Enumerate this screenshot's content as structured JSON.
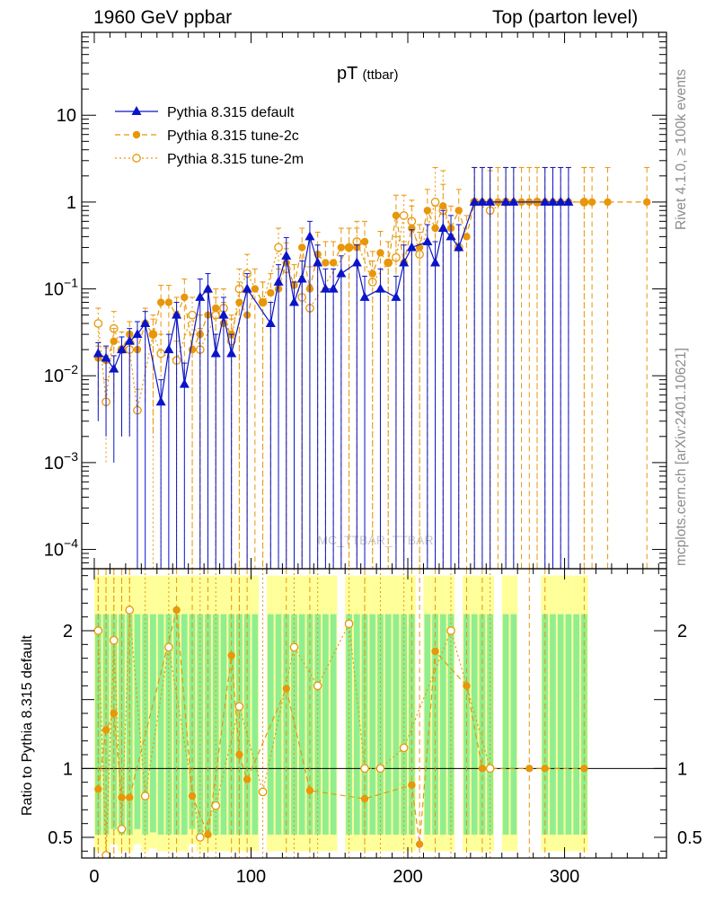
{
  "header": {
    "left": "1960 GeV ppbar",
    "right": "Top (parton level)"
  },
  "side_labels": {
    "rivet": "Rivet 4.1.0, ≥ 100k events",
    "mcplots": "mcplots.cern.ch [arXiv:2401.10621]"
  },
  "watermark": "MC_TTBAR_TTBAR",
  "colors": {
    "default": "#0a14c8",
    "tune2c": "#e8960a",
    "tune2m": "#e8960a",
    "band_green": "#90ee90",
    "band_yellow": "#ffff99"
  },
  "chart_data": {
    "type": "line",
    "title": "pT",
    "title_sub": "(ttbar)",
    "xlabel": "",
    "xlim": [
      -8,
      365
    ],
    "x_ticks": [
      "0",
      "100",
      "200",
      "300"
    ],
    "main": {
      "yscale": "log",
      "ylim": [
        6e-05,
        90
      ],
      "y_ticks": [
        {
          "value": 0.0001,
          "base": "10",
          "exp": "−4"
        },
        {
          "value": 0.001,
          "base": "10",
          "exp": "−3"
        },
        {
          "value": 0.01,
          "base": "10",
          "exp": "−2"
        },
        {
          "value": 0.1,
          "base": "10",
          "exp": "−1"
        },
        {
          "value": 1,
          "base": "1",
          "exp": ""
        },
        {
          "value": 10,
          "base": "10",
          "exp": ""
        }
      ],
      "legend": [
        "Pythia 8.315 default",
        "Pythia 8.315 tune-2c",
        "Pythia 8.315 tune-2m"
      ],
      "series": [
        {
          "name": "Pythia 8.315 default",
          "x": [
            2.5,
            7.5,
            12.5,
            17.5,
            22.5,
            27.5,
            32.5,
            42.5,
            47.5,
            52.5,
            57.5,
            67.5,
            72.5,
            77.5,
            82.5,
            87.5,
            97.5,
            112.5,
            117.5,
            122.5,
            127.5,
            132.5,
            137.5,
            142.5,
            147.5,
            152.5,
            157.5,
            167.5,
            172.5,
            182.5,
            192.5,
            197.5,
            202.5,
            212.5,
            217.5,
            222.5,
            227.5,
            232.5,
            242.5,
            247.5,
            252.5,
            262.5,
            267.5,
            287.5,
            292.5,
            297.5,
            302.5
          ],
          "y": [
            0.018,
            0.016,
            0.012,
            0.02,
            0.025,
            0.03,
            0.04,
            0.005,
            0.02,
            0.05,
            0.008,
            0.08,
            0.1,
            0.018,
            0.05,
            0.018,
            0.1,
            0.04,
            0.12,
            0.24,
            0.07,
            0.13,
            0.4,
            0.2,
            0.1,
            0.1,
            0.15,
            0.2,
            0.08,
            0.1,
            0.08,
            0.2,
            0.3,
            0.35,
            0.2,
            0.5,
            0.4,
            0.3,
            1,
            1,
            1,
            1,
            1,
            1,
            1,
            1,
            1
          ],
          "err_lo": [
            0.015,
            0.014,
            0.011,
            0.018,
            0.023,
            0.03,
            0.04,
            0.005,
            0.02,
            0.05,
            0.008,
            0.08,
            0.1,
            0.018,
            0.05,
            0.018,
            0.1,
            0.04,
            0.12,
            0.24,
            0.07,
            0.13,
            0.4,
            0.2,
            0.1,
            0.1,
            0.15,
            0.2,
            0.08,
            0.1,
            0.08,
            0.2,
            0.3,
            0.35,
            0.2,
            0.5,
            0.4,
            0.3,
            1,
            1,
            1,
            1,
            1,
            1,
            1,
            1,
            1
          ],
          "err_hi": [
            0.006,
            0.006,
            0.005,
            0.008,
            0.01,
            0.012,
            0.015,
            0.004,
            0.01,
            0.02,
            0.006,
            0.05,
            0.05,
            0.012,
            0.03,
            0.012,
            0.05,
            0.03,
            0.07,
            0.15,
            0.05,
            0.08,
            0.2,
            0.12,
            0.07,
            0.07,
            0.09,
            0.12,
            0.06,
            0.07,
            0.06,
            0.12,
            0.18,
            0.2,
            0.15,
            0.3,
            0.3,
            0.25,
            1.5,
            1.5,
            1.5,
            1.5,
            1.5,
            1.5,
            1.5,
            1.5,
            1.5
          ],
          "color": "#0a14c8",
          "marker": "triangle",
          "dash": ""
        },
        {
          "name": "Pythia 8.315 tune-2c",
          "x": [
            2.5,
            7.5,
            12.5,
            17.5,
            22.5,
            27.5,
            32.5,
            37.5,
            42.5,
            47.5,
            52.5,
            57.5,
            62.5,
            67.5,
            72.5,
            77.5,
            82.5,
            87.5,
            92.5,
            97.5,
            102.5,
            107.5,
            112.5,
            117.5,
            122.5,
            127.5,
            132.5,
            137.5,
            142.5,
            147.5,
            152.5,
            157.5,
            162.5,
            167.5,
            172.5,
            177.5,
            182.5,
            187.5,
            192.5,
            197.5,
            202.5,
            207.5,
            212.5,
            217.5,
            222.5,
            227.5,
            232.5,
            237.5,
            242.5,
            247.5,
            252.5,
            257.5,
            262.5,
            267.5,
            272.5,
            277.5,
            282.5,
            287.5,
            292.5,
            297.5,
            302.5,
            312.5,
            317.5,
            327.5,
            352.5
          ],
          "y": [
            0.016,
            0.015,
            0.025,
            0.02,
            0.03,
            0.02,
            0.04,
            0.03,
            0.07,
            0.07,
            0.05,
            0.08,
            0.02,
            0.03,
            0.05,
            0.06,
            0.04,
            0.03,
            0.07,
            0.05,
            0.1,
            0.07,
            0.09,
            0.1,
            0.2,
            0.11,
            0.3,
            0.1,
            0.25,
            0.2,
            0.2,
            0.3,
            0.3,
            0.3,
            0.35,
            0.15,
            0.26,
            0.2,
            0.7,
            0.2,
            0.5,
            0.3,
            0.8,
            0.5,
            0.9,
            0.5,
            0.8,
            0.4,
            1,
            1,
            1,
            1,
            1,
            1,
            1,
            1,
            1,
            1,
            1,
            1,
            1,
            1,
            1,
            1,
            1
          ],
          "err_lo": [
            0.012,
            0.011,
            0.02,
            0.016,
            0.025,
            0.018,
            0.035,
            0.028,
            0.06,
            0.06,
            0.045,
            0.07,
            0.02,
            0.03,
            0.05,
            0.06,
            0.04,
            0.03,
            0.07,
            0.05,
            0.1,
            0.07,
            0.09,
            0.1,
            0.2,
            0.11,
            0.3,
            0.1,
            0.25,
            0.2,
            0.2,
            0.3,
            0.3,
            0.3,
            0.35,
            0.15,
            0.26,
            0.2,
            0.7,
            0.2,
            0.5,
            0.3,
            0.8,
            0.5,
            0.9,
            0.5,
            0.8,
            0.4,
            1,
            1,
            1,
            1,
            1,
            1,
            1,
            1,
            1,
            1,
            1,
            1,
            1,
            1,
            1,
            1,
            1
          ],
          "err_hi": [
            0.006,
            0.006,
            0.01,
            0.008,
            0.012,
            0.008,
            0.02,
            0.015,
            0.04,
            0.04,
            0.03,
            0.05,
            0.01,
            0.02,
            0.04,
            0.04,
            0.03,
            0.02,
            0.05,
            0.04,
            0.07,
            0.05,
            0.06,
            0.07,
            0.14,
            0.08,
            0.2,
            0.08,
            0.2,
            0.15,
            0.15,
            0.2,
            0.2,
            0.2,
            0.25,
            0.12,
            0.2,
            0.15,
            0.5,
            0.15,
            0.4,
            0.25,
            0.6,
            0.4,
            0.7,
            0.4,
            0.6,
            0.3,
            1.5,
            1.5,
            1.5,
            1.5,
            1.5,
            1.5,
            1.5,
            1.5,
            1.5,
            1.5,
            1.5,
            1.5,
            1.5,
            1.5,
            1.5,
            1.5,
            1.5
          ],
          "color": "#e8960a",
          "marker": "circle",
          "dash": "6,4"
        },
        {
          "name": "Pythia 8.315 tune-2m",
          "x": [
            2.5,
            7.5,
            12.5,
            17.5,
            22.5,
            27.5,
            37.5,
            42.5,
            52.5,
            62.5,
            67.5,
            77.5,
            82.5,
            87.5,
            92.5,
            97.5,
            107.5,
            117.5,
            122.5,
            132.5,
            137.5,
            162.5,
            167.5,
            177.5,
            187.5,
            192.5,
            197.5,
            202.5,
            207.5,
            217.5,
            222.5,
            232.5,
            242.5,
            252.5,
            262.5,
            282.5,
            312.5
          ],
          "y": [
            0.04,
            0.005,
            0.035,
            0.02,
            0.02,
            0.004,
            0.03,
            0.018,
            0.015,
            0.05,
            0.02,
            0.05,
            0.06,
            0.025,
            0.1,
            0.15,
            0.07,
            0.3,
            0.17,
            0.08,
            0.06,
            0.3,
            0.35,
            0.12,
            0.2,
            0.23,
            0.7,
            0.6,
            0.25,
            1,
            0.8,
            0.3,
            1,
            0.8,
            1,
            1,
            1
          ],
          "err_lo": [
            0.03,
            0.004,
            0.03,
            0.018,
            0.018,
            0.004,
            0.03,
            0.018,
            0.015,
            0.05,
            0.02,
            0.05,
            0.06,
            0.025,
            0.1,
            0.15,
            0.07,
            0.3,
            0.17,
            0.08,
            0.06,
            0.3,
            0.35,
            0.12,
            0.2,
            0.23,
            0.7,
            0.6,
            0.25,
            1,
            0.8,
            0.3,
            1,
            0.8,
            1,
            1,
            1
          ],
          "err_hi": [
            0.02,
            0.004,
            0.02,
            0.012,
            0.012,
            0.003,
            0.02,
            0.012,
            0.01,
            0.03,
            0.015,
            0.03,
            0.04,
            0.02,
            0.07,
            0.1,
            0.05,
            0.2,
            0.12,
            0.06,
            0.05,
            0.2,
            0.25,
            0.09,
            0.15,
            0.17,
            0.5,
            0.45,
            0.2,
            1.5,
            1.5,
            0.25,
            1.5,
            1.5,
            1.5,
            1.5,
            1.5
          ],
          "color": "#e8960a",
          "marker": "open-circle",
          "dash": "2,3"
        }
      ]
    },
    "ratio": {
      "ylabel": "Ratio to Pythia 8.315 default",
      "ylim": [
        0.35,
        2.45
      ],
      "y_ticks": [
        "0.5",
        "1",
        "2"
      ],
      "y_tick_values": [
        0.5,
        1,
        2
      ],
      "reference": 1,
      "series": [
        {
          "name": "Pythia 8.315 tune-2c",
          "x": [
            2.5,
            7.5,
            12.5,
            17.5,
            22.5,
            52.5,
            62.5,
            72.5,
            87.5,
            92.5,
            97.5,
            122.5,
            137.5,
            172.5,
            202.5,
            207.5,
            217.5,
            237.5,
            247.5,
            277.5,
            287.5,
            312.5
          ],
          "y": [
            0.85,
            1.28,
            1.4,
            0.79,
            0.79,
            2.15,
            0.8,
            0.52,
            1.82,
            1.1,
            0.92,
            1.58,
            0.84,
            0.78,
            0.88,
            0.45,
            1.85,
            1.6,
            1.0,
            1.0,
            1.0,
            1.0
          ],
          "color": "#e8960a",
          "marker": "circle",
          "dash": "6,4"
        },
        {
          "name": "Pythia 8.315 tune-2m",
          "x": [
            2.5,
            7.5,
            12.5,
            17.5,
            22.5,
            32.5,
            47.5,
            67.5,
            77.5,
            92.5,
            107.5,
            127.5,
            142.5,
            162.5,
            172.5,
            182.5,
            197.5,
            227.5,
            252.5
          ],
          "y": [
            2.0,
            0.37,
            1.93,
            0.56,
            2.15,
            0.8,
            1.88,
            0.5,
            0.73,
            1.45,
            0.83,
            1.88,
            1.6,
            2.05,
            1.0,
            1.0,
            1.15,
            2.0,
            1.0
          ],
          "color": "#e8960a",
          "marker": "open-circle",
          "dash": "2,3"
        }
      ],
      "bands": [
        {
          "x": 2.5,
          "lo": 0.4,
          "hi": 2.4
        },
        {
          "x": 7.5,
          "lo": 0.4,
          "hi": 2.4
        },
        {
          "x": 12.5,
          "lo": 0.45,
          "hi": 2.4
        },
        {
          "x": 17.5,
          "lo": 0.4,
          "hi": 2.4
        },
        {
          "x": 22.5,
          "lo": 0.4,
          "hi": 2.4
        },
        {
          "x": 27.5,
          "lo": 0.45,
          "hi": 2.4
        },
        {
          "x": 32.5,
          "lo": 0.4,
          "hi": 2.4
        },
        {
          "x": 37.5,
          "lo": 0.42,
          "hi": 2.4
        },
        {
          "x": 42.5,
          "lo": 0.4,
          "hi": 2.4
        },
        {
          "x": 47.5,
          "lo": 0.4,
          "hi": 2.4
        },
        {
          "x": 52.5,
          "lo": 0.4,
          "hi": 2.4
        },
        {
          "x": 57.5,
          "lo": 0.4,
          "hi": 2.4
        },
        {
          "x": 62.5,
          "lo": 0.45,
          "hi": 2.4
        },
        {
          "x": 67.5,
          "lo": 0.4,
          "hi": 2.4
        },
        {
          "x": 72.5,
          "lo": 0.4,
          "hi": 2.4
        },
        {
          "x": 77.5,
          "lo": 0.4,
          "hi": 2.4
        },
        {
          "x": 82.5,
          "lo": 0.4,
          "hi": 2.4
        },
        {
          "x": 87.5,
          "lo": 0.4,
          "hi": 2.4
        },
        {
          "x": 92.5,
          "lo": 0.4,
          "hi": 2.4
        },
        {
          "x": 97.5,
          "lo": 0.4,
          "hi": 2.4
        },
        {
          "x": 102.5,
          "lo": 0.4,
          "hi": 2.4
        },
        {
          "x": 112.5,
          "lo": 0.4,
          "hi": 2.4
        },
        {
          "x": 117.5,
          "lo": 0.4,
          "hi": 2.4
        },
        {
          "x": 122.5,
          "lo": 0.4,
          "hi": 2.4
        },
        {
          "x": 127.5,
          "lo": 0.4,
          "hi": 2.4
        },
        {
          "x": 132.5,
          "lo": 0.4,
          "hi": 2.4
        },
        {
          "x": 137.5,
          "lo": 0.4,
          "hi": 2.4
        },
        {
          "x": 142.5,
          "lo": 0.4,
          "hi": 2.4
        },
        {
          "x": 147.5,
          "lo": 0.4,
          "hi": 2.4
        },
        {
          "x": 152.5,
          "lo": 0.4,
          "hi": 2.4
        },
        {
          "x": 162.5,
          "lo": 0.4,
          "hi": 2.4
        },
        {
          "x": 167.5,
          "lo": 0.4,
          "hi": 2.4
        },
        {
          "x": 172.5,
          "lo": 0.4,
          "hi": 2.4
        },
        {
          "x": 177.5,
          "lo": 0.4,
          "hi": 2.4
        },
        {
          "x": 182.5,
          "lo": 0.4,
          "hi": 2.4
        },
        {
          "x": 187.5,
          "lo": 0.4,
          "hi": 2.4
        },
        {
          "x": 192.5,
          "lo": 0.4,
          "hi": 2.4
        },
        {
          "x": 197.5,
          "lo": 0.4,
          "hi": 2.4
        },
        {
          "x": 202.5,
          "lo": 0.4,
          "hi": 2.4
        },
        {
          "x": 212.5,
          "lo": 0.4,
          "hi": 2.4
        },
        {
          "x": 217.5,
          "lo": 0.4,
          "hi": 2.4
        },
        {
          "x": 222.5,
          "lo": 0.4,
          "hi": 2.4
        },
        {
          "x": 227.5,
          "lo": 0.4,
          "hi": 2.4
        },
        {
          "x": 237.5,
          "lo": 0.4,
          "hi": 2.4
        },
        {
          "x": 242.5,
          "lo": 0.4,
          "hi": 2.4
        },
        {
          "x": 247.5,
          "lo": 0.4,
          "hi": 2.4
        },
        {
          "x": 252.5,
          "lo": 0.4,
          "hi": 2.4
        },
        {
          "x": 262.5,
          "lo": 0.4,
          "hi": 2.4
        },
        {
          "x": 267.5,
          "lo": 0.4,
          "hi": 2.4
        },
        {
          "x": 287.5,
          "lo": 0.4,
          "hi": 2.4
        },
        {
          "x": 292.5,
          "lo": 0.4,
          "hi": 2.4
        },
        {
          "x": 297.5,
          "lo": 0.4,
          "hi": 2.4
        },
        {
          "x": 302.5,
          "lo": 0.4,
          "hi": 2.4
        },
        {
          "x": 307.5,
          "lo": 0.4,
          "hi": 2.4
        },
        {
          "x": 312.5,
          "lo": 0.4,
          "hi": 2.4
        }
      ]
    }
  }
}
